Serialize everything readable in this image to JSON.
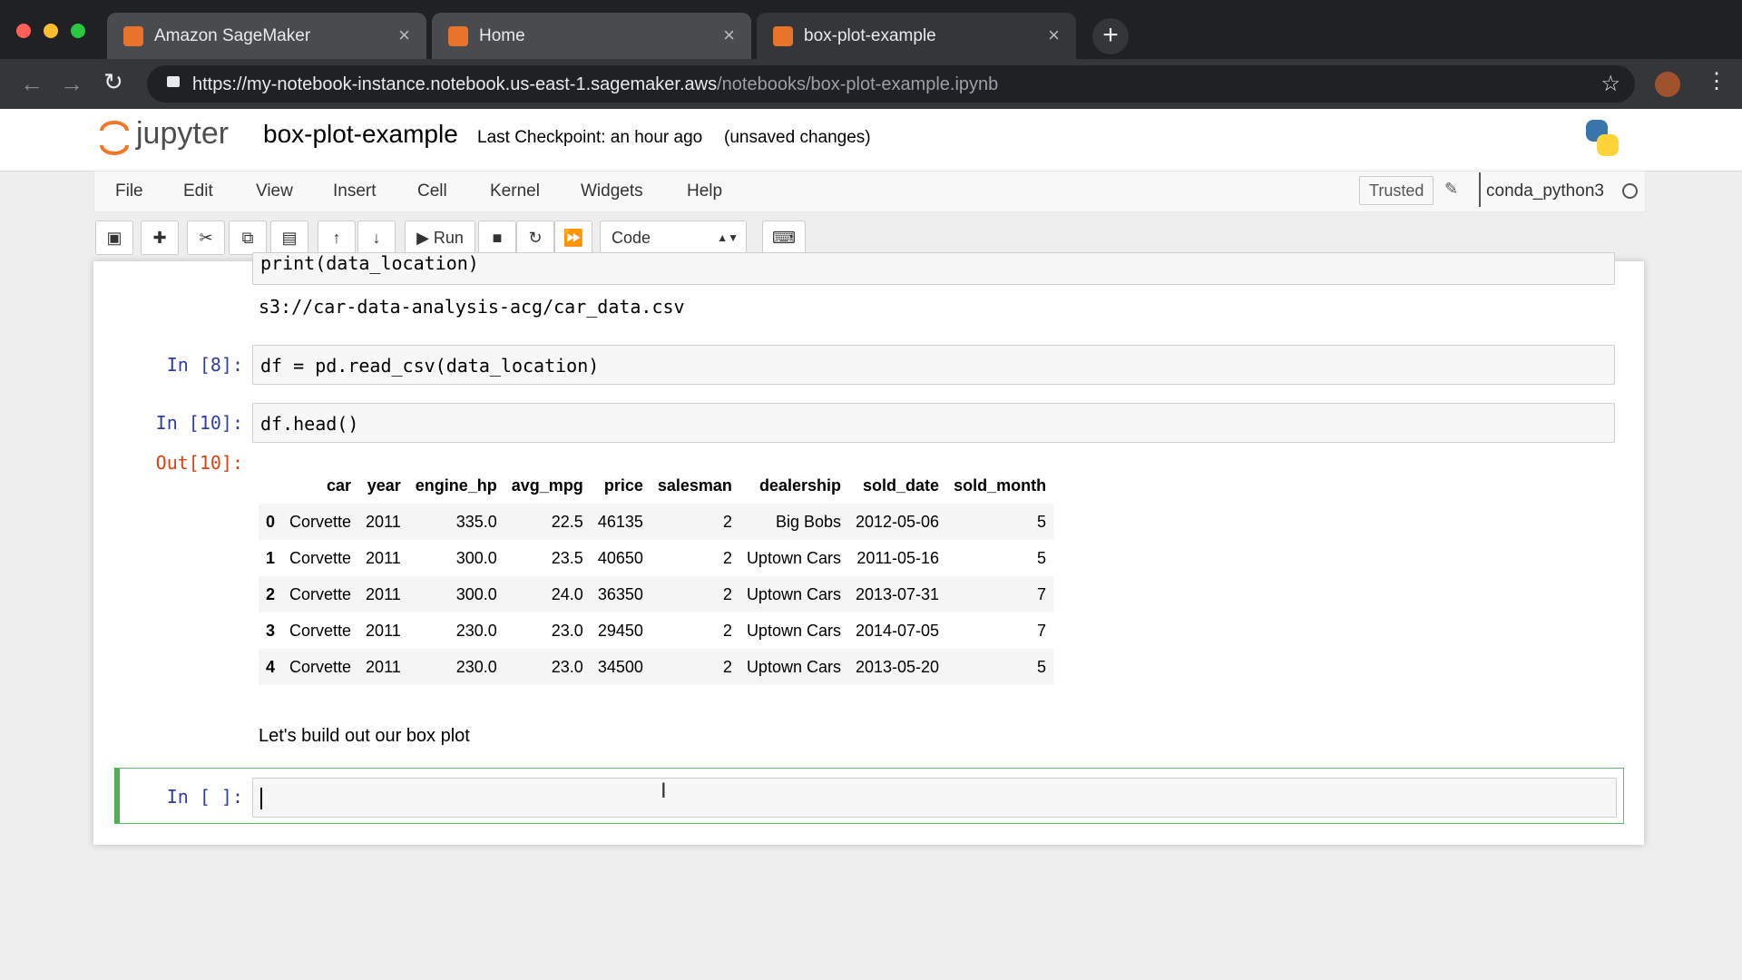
{
  "browser": {
    "tabs": [
      "Amazon SageMaker",
      "Home",
      "box-plot-example"
    ],
    "url_host": "https://my-notebook-instance.notebook.us-east-1.sagemaker.aws",
    "url_path": "/notebooks/box-plot-example.ipynb"
  },
  "header": {
    "logo": "jupyter",
    "title": "box-plot-example",
    "checkpoint": "Last Checkpoint: an hour ago",
    "status": "(unsaved changes)"
  },
  "menu": [
    "File",
    "Edit",
    "View",
    "Insert",
    "Cell",
    "Kernel",
    "Widgets",
    "Help"
  ],
  "kernel": {
    "trusted": "Trusted",
    "name": "conda_python3"
  },
  "toolbar": {
    "run": "Run",
    "cell_type": "Code"
  },
  "cells": {
    "print_cell": {
      "code": "print(data_location)",
      "output": "s3://car-data-analysis-acg/car_data.csv"
    },
    "read_cell": {
      "prompt": "In [8]:",
      "code": "df = pd.read_csv(data_location)"
    },
    "head_cell": {
      "prompt": "In [10]:",
      "code": "df.head()",
      "out_prompt": "Out[10]:"
    },
    "markdown": "Let's build out our box plot",
    "empty_cell": {
      "prompt": "In [ ]:"
    }
  },
  "table": {
    "columns": [
      "car",
      "year",
      "engine_hp",
      "avg_mpg",
      "price",
      "salesman",
      "dealership",
      "sold_date",
      "sold_month"
    ],
    "rows": [
      [
        0,
        "Corvette",
        2011,
        "335.0",
        "22.5",
        46135,
        2,
        "Big Bobs",
        "2012-05-06",
        5
      ],
      [
        1,
        "Corvette",
        2011,
        "300.0",
        "23.5",
        40650,
        2,
        "Uptown Cars",
        "2011-05-16",
        5
      ],
      [
        2,
        "Corvette",
        2011,
        "300.0",
        "24.0",
        36350,
        2,
        "Uptown Cars",
        "2013-07-31",
        7
      ],
      [
        3,
        "Corvette",
        2011,
        "230.0",
        "23.0",
        29450,
        2,
        "Uptown Cars",
        "2014-07-05",
        7
      ],
      [
        4,
        "Corvette",
        2011,
        "230.0",
        "23.0",
        34500,
        2,
        "Uptown Cars",
        "2013-05-20",
        5
      ]
    ]
  }
}
